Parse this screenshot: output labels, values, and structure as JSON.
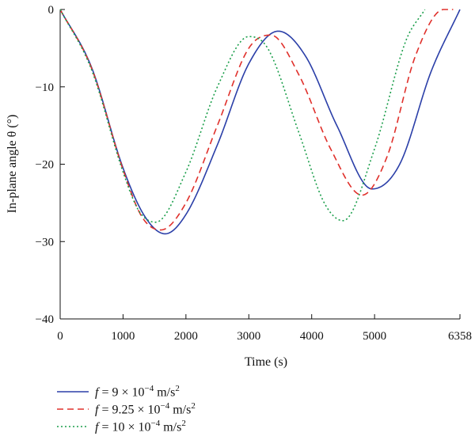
{
  "chart_data": {
    "type": "line",
    "title": "",
    "xlabel": "Time (s)",
    "ylabel": "In-plane angle θ (°)",
    "xlim": [
      0,
      6358
    ],
    "ylim": [
      -40,
      0
    ],
    "xticks": [
      0,
      1000,
      2000,
      3000,
      4000,
      5000,
      6358
    ],
    "xtick_labels": [
      "0",
      "1000",
      "2000",
      "3000",
      "4000",
      "5000",
      "6358"
    ],
    "yticks": [
      0,
      -10,
      -20,
      -30,
      -40
    ],
    "ytick_labels": [
      "0",
      "−10",
      "−20",
      "−30",
      "−40"
    ],
    "grid": false,
    "legend_position": "bottom-left",
    "series": [
      {
        "name": "f = 9 × 10−4 m/s2",
        "legend": {
          "var": "f",
          "pre": " = 9 × 10",
          "exp": "−4",
          "mid": " m/s",
          "exp2": "2"
        },
        "color": "#2b3fa8",
        "dash": "solid",
        "x": [
          0,
          500,
          1000,
          1350,
          1670,
          2000,
          2500,
          3000,
          3470,
          3900,
          4400,
          4960,
          5400,
          5900,
          6358
        ],
        "y": [
          0,
          -7.5,
          -20.5,
          -26.8,
          -29.0,
          -26.5,
          -17.5,
          -7.0,
          -2.8,
          -6.0,
          -15.0,
          -23.2,
          -20.0,
          -8.0,
          0
        ]
      },
      {
        "name": "f = 9.25 × 10−4 m/s2",
        "legend": {
          "var": "f",
          "pre": " = 9.25 × 10",
          "exp": "−4",
          "mid": " m/s",
          "exp2": "2"
        },
        "color": "#e0302b",
        "dash": "8,5",
        "x": [
          0,
          500,
          1000,
          1300,
          1600,
          2000,
          2500,
          3000,
          3350,
          3800,
          4300,
          4800,
          5200,
          5650,
          6100,
          6250
        ],
        "y": [
          0,
          -7.6,
          -20.7,
          -26.8,
          -28.5,
          -25.0,
          -15.0,
          -5.0,
          -3.3,
          -8.5,
          -18.0,
          -24.0,
          -19.0,
          -6.0,
          0,
          0
        ]
      },
      {
        "name": "f = 10 × 10−4 m/s2",
        "legend": {
          "var": "f",
          "pre": " = 10 × 10",
          "exp": "−4",
          "mid": " m/s",
          "exp2": "2"
        },
        "color": "#1a9e4a",
        "dash": "2,3",
        "x": [
          0,
          500,
          1000,
          1250,
          1520,
          2000,
          2500,
          3000,
          3300,
          3800,
          4200,
          4500,
          5000,
          5500,
          5800
        ],
        "y": [
          0,
          -7.8,
          -21.0,
          -26.0,
          -27.5,
          -21.0,
          -10.0,
          -3.5,
          -5.0,
          -16.0,
          -25.0,
          -27.3,
          -18.0,
          -4.0,
          0
        ]
      }
    ]
  }
}
